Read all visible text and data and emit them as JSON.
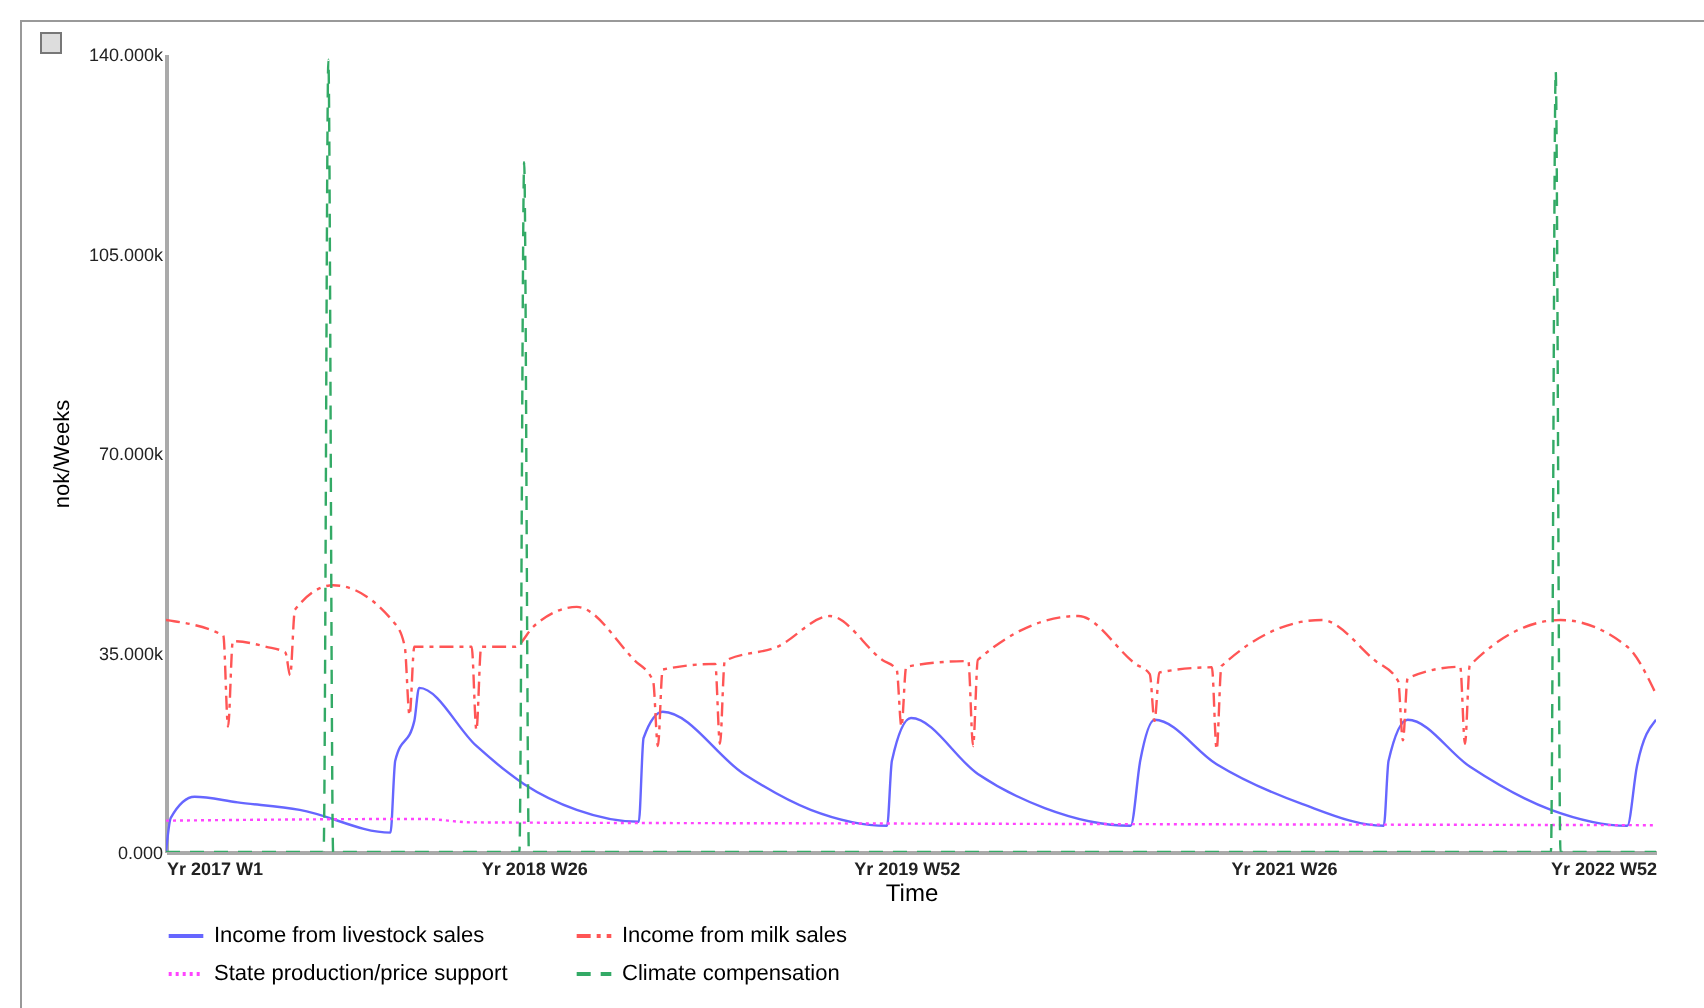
{
  "chart_data": {
    "type": "line",
    "xlabel": "Time",
    "ylabel": "nok/Weeks",
    "xlim": [
      "2017-01-02",
      "2022-12-26"
    ],
    "xticks": [
      {
        "value": "2017-01-02",
        "label": "Yr 2017 W1"
      },
      {
        "value": "2018-06-25",
        "label": "Yr 2018 W26"
      },
      {
        "value": "2019-12-23",
        "label": "Yr 2019 W52"
      },
      {
        "value": "2021-06-28",
        "label": "Yr 2021 W26"
      },
      {
        "value": "2022-12-26",
        "label": "Yr 2022 W52"
      }
    ],
    "ylim": [
      0,
      140000
    ],
    "yticks": [
      {
        "value": 0,
        "label": "0.000"
      },
      {
        "value": 35000,
        "label": "35.000k"
      },
      {
        "value": 70000,
        "label": "70.000k"
      },
      {
        "value": 105000,
        "label": "105.000k"
      },
      {
        "value": 140000,
        "label": "140.000k"
      }
    ],
    "grid": false,
    "legend": "bottom",
    "series": [
      {
        "name": "Income from livestock sales",
        "color": "#6666ff",
        "line_style": "solid",
        "x": [
          "2017-01-02",
          "2017-01-09",
          "2017-02-13",
          "2017-04-17",
          "2017-07-17",
          "2017-11-27",
          "2017-12-04",
          "2018-01-01",
          "2018-01-08",
          "2018-04-02",
          "2018-06-11",
          "2018-08-27",
          "2018-11-26",
          "2018-12-03",
          "2018-12-31",
          "2019-04-29",
          "2019-08-05",
          "2019-11-25",
          "2019-12-02",
          "2019-12-30",
          "2020-04-06",
          "2020-07-13",
          "2020-11-16",
          "2020-11-30",
          "2020-12-21",
          "2021-03-22",
          "2021-07-26",
          "2021-11-22",
          "2021-11-29",
          "2021-12-27",
          "2022-03-28",
          "2022-07-25",
          "2022-11-14",
          "2022-11-28",
          "2022-12-26"
        ],
        "values": [
          0,
          6000,
          9700,
          8700,
          7400,
          3400,
          16000,
          23000,
          28800,
          18600,
          11900,
          7400,
          5300,
          20000,
          24600,
          13700,
          7400,
          4600,
          16000,
          23500,
          13700,
          7700,
          4600,
          16000,
          23200,
          15400,
          8400,
          4600,
          16000,
          23200,
          15000,
          7400,
          4600,
          15000,
          23200
        ]
      },
      {
        "name": "Income from milk sales",
        "color": "#ff5555",
        "line_style": "dashdot",
        "x": [
          "2017-01-02",
          "2017-03-20",
          "2017-03-27",
          "2017-04-03",
          "2017-04-10",
          "2017-05-29",
          "2017-06-26",
          "2017-07-03",
          "2017-07-10",
          "2017-09-04",
          "2017-12-04",
          "2017-12-18",
          "2017-12-25",
          "2018-01-01",
          "2018-03-19",
          "2018-03-26",
          "2018-04-02",
          "2018-04-09",
          "2018-05-28",
          "2018-06-25",
          "2018-08-27",
          "2018-11-19",
          "2018-12-17",
          "2018-12-24",
          "2018-12-31",
          "2019-03-18",
          "2019-03-25",
          "2019-04-01",
          "2019-06-17",
          "2019-09-02",
          "2019-11-18",
          "2019-12-09",
          "2019-12-16",
          "2019-12-23",
          "2020-03-23",
          "2020-03-30",
          "2020-04-06",
          "2020-08-31",
          "2020-11-23",
          "2020-12-14",
          "2020-12-21",
          "2020-12-28",
          "2021-03-15",
          "2021-03-22",
          "2021-03-29",
          "2021-08-23",
          "2021-11-08",
          "2021-12-13",
          "2021-12-20",
          "2021-12-27",
          "2022-03-14",
          "2022-03-21",
          "2022-03-28",
          "2022-08-08",
          "2022-11-14",
          "2022-12-26"
        ],
        "values": [
          40700,
          38400,
          38000,
          22000,
          37000,
          36000,
          35000,
          31000,
          42500,
          46800,
          40000,
          36000,
          24000,
          36000,
          36000,
          36000,
          21400,
          36000,
          36000,
          39600,
          43000,
          33700,
          30000,
          18600,
          32000,
          33000,
          19000,
          33500,
          36000,
          41400,
          33700,
          32000,
          22000,
          32500,
          33500,
          18600,
          33700,
          41400,
          33000,
          31200,
          23000,
          31500,
          32400,
          18000,
          32600,
          40700,
          33700,
          30000,
          19600,
          30500,
          32500,
          19000,
          32700,
          40700,
          36000,
          27700
        ]
      },
      {
        "name": "State production/price support",
        "color": "#ff44ff",
        "line_style": "dotted",
        "x": [
          "2017-01-02",
          "2018-01-15",
          "2018-03-26",
          "2019-11-11",
          "2022-12-26"
        ],
        "values": [
          5500,
          5800,
          5200,
          5000,
          4700
        ]
      },
      {
        "name": "Climate compensation",
        "color": "#33aa66",
        "line_style": "dashed",
        "x": [
          "2017-01-02",
          "2017-08-21",
          "2017-08-28",
          "2017-09-04",
          "2018-06-04",
          "2018-06-11",
          "2018-06-18",
          "2022-07-25",
          "2022-08-01",
          "2022-08-08",
          "2022-12-26"
        ],
        "values": [
          0,
          0,
          139000,
          0,
          0,
          121000,
          0,
          0,
          137000,
          0,
          0
        ]
      }
    ]
  }
}
